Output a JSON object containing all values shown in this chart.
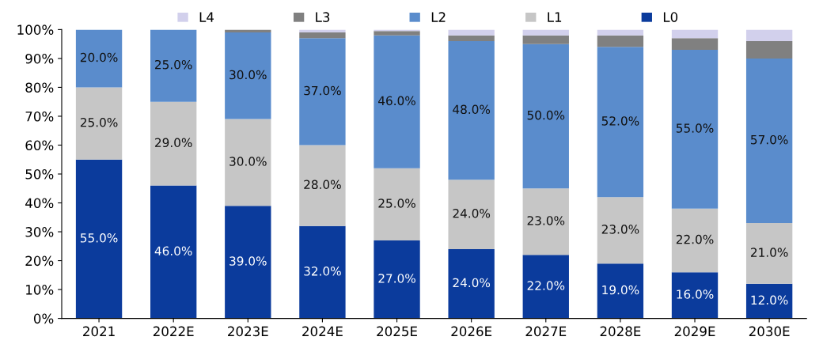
{
  "chart_data": {
    "type": "bar",
    "stacked": true,
    "categories": [
      "2021",
      "2022E",
      "2023E",
      "2024E",
      "2025E",
      "2026E",
      "2027E",
      "2028E",
      "2029E",
      "2030E"
    ],
    "series": [
      {
        "name": "L0",
        "color": "#0b3b9c",
        "values": [
          55,
          46,
          39,
          32,
          27,
          24,
          22,
          19,
          16,
          12
        ],
        "value_labels": [
          "55.0%",
          "46.0%",
          "39.0%",
          "32.0%",
          "27.0%",
          "24.0%",
          "22.0%",
          "19.0%",
          "16.0%",
          "12.0%"
        ]
      },
      {
        "name": "L1",
        "color": "#c6c6c6",
        "values": [
          25,
          29,
          30,
          28,
          25,
          24,
          23,
          23,
          22,
          21
        ],
        "value_labels": [
          "25.0%",
          "29.0%",
          "30.0%",
          "28.0%",
          "25.0%",
          "24.0%",
          "23.0%",
          "23.0%",
          "22.0%",
          "21.0%"
        ]
      },
      {
        "name": "L2",
        "color": "#5a8ccc",
        "values": [
          20,
          25,
          30,
          37,
          46,
          48,
          50,
          52,
          55,
          57
        ],
        "value_labels": [
          "20.0%",
          "25.0%",
          "30.0%",
          "37.0%",
          "46.0%",
          "48.0%",
          "50.0%",
          "52.0%",
          "55.0%",
          "57.0%"
        ]
      },
      {
        "name": "L3",
        "color": "#808080",
        "values": [
          0,
          0,
          1,
          2,
          1.5,
          2,
          3,
          4,
          4,
          6
        ]
      },
      {
        "name": "L4",
        "color": "#d2d0ec",
        "values": [
          0,
          0,
          0,
          1,
          0.5,
          2,
          2,
          2,
          3,
          4
        ]
      }
    ],
    "ylim": [
      0,
      100
    ],
    "yticks": [
      {
        "value": 0,
        "label": "0%"
      },
      {
        "value": 10,
        "label": "10%"
      },
      {
        "value": 20,
        "label": "20%"
      },
      {
        "value": 30,
        "label": "30%"
      },
      {
        "value": 40,
        "label": "40%"
      },
      {
        "value": 50,
        "label": "50%"
      },
      {
        "value": 60,
        "label": "60%"
      },
      {
        "value": 70,
        "label": "70%"
      },
      {
        "value": 80,
        "label": "80%"
      },
      {
        "value": 90,
        "label": "90%"
      },
      {
        "value": 100,
        "label": "100%"
      }
    ],
    "legend": "top",
    "grid": false
  }
}
